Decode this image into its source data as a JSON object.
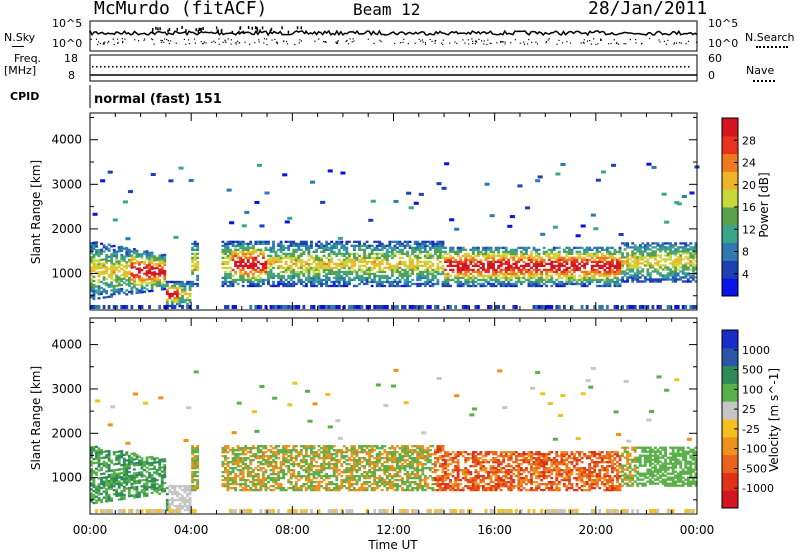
{
  "header": {
    "station": "McMurdo (fitACF)",
    "beam": "Beam 12",
    "date": "28/Jan/2011"
  },
  "strip_panels": {
    "nsky_label": "N.Sky",
    "nsearch_label": "N.Search",
    "nsky_ticks": [
      "10^5",
      "10^0"
    ],
    "nsearch_ticks": [
      "10^5",
      "10^0"
    ],
    "freq_label": [
      "Freq.",
      "[MHz]"
    ],
    "freq_ticks": [
      "18",
      "8"
    ],
    "nave_label": "Nave",
    "nave_ticks": [
      "60",
      "0"
    ],
    "cpid_label": "CPID",
    "cpid_value": "normal (fast) 151"
  },
  "colors": {
    "power_scale": [
      "#0a12e6",
      "#1e40b4",
      "#2e7ab0",
      "#3aa58c",
      "#5aa04a",
      "#c8d83a",
      "#f0b428",
      "#ef7a1e",
      "#e8321e",
      "#d4141e"
    ],
    "velocity_scale": [
      "#1a2cc8",
      "#2a54a8",
      "#2f8a5a",
      "#5ab048",
      "#c6c6c6",
      "#f4c020",
      "#f0901c",
      "#e8641c",
      "#e03218",
      "#d4141e"
    ]
  },
  "chart_data": [
    {
      "type": "heatmap",
      "name": "power",
      "ylabel": "Slant Range [km]",
      "xlim": [
        0,
        24
      ],
      "ylim": [
        180,
        4600
      ],
      "x_ticks": [
        "00:00",
        "04:00",
        "08:00",
        "12:00",
        "16:00",
        "20:00",
        "00:00"
      ],
      "y_ticks": [
        "1000",
        "2000",
        "3000",
        "4000"
      ],
      "colorbar_label": "Power [dB]",
      "colorbar_ticks": [
        "28",
        "24",
        "20",
        "16",
        "12",
        "8",
        "4"
      ],
      "colorbar_range": [
        0,
        32
      ]
    },
    {
      "type": "heatmap",
      "name": "velocity",
      "xlabel": "Time UT",
      "ylabel": "Slant Range [km]",
      "xlim": [
        0,
        24
      ],
      "ylim": [
        180,
        4600
      ],
      "x_ticks": [
        "00:00",
        "04:00",
        "08:00",
        "12:00",
        "16:00",
        "20:00",
        "00:00"
      ],
      "y_ticks": [
        "1000",
        "2000",
        "3000",
        "4000"
      ],
      "colorbar_label": "Velocity [m s^-1]",
      "colorbar_ticks": [
        "1000",
        "500",
        "100",
        "25",
        "-25",
        "-100",
        "-500",
        "-1000"
      ]
    }
  ]
}
